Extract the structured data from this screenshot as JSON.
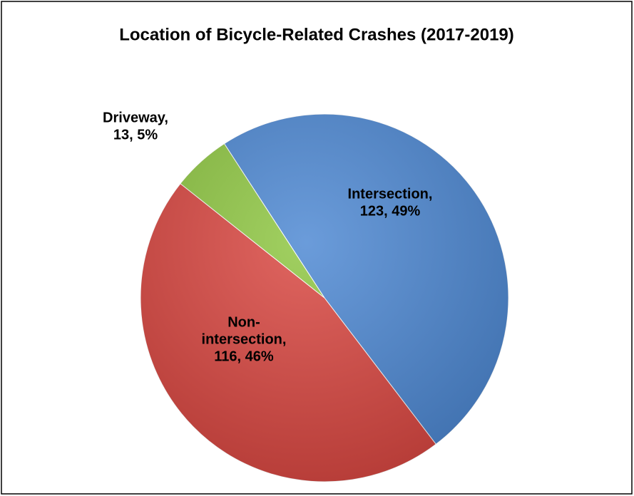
{
  "chart_data": {
    "type": "pie",
    "title": "Location of Bicycle-Related Crashes (2017-2019)",
    "values": [
      123,
      116,
      13
    ],
    "colors": [
      "#4a86d2",
      "#d9443e",
      "#8dc63f"
    ],
    "value_labels": [
      [
        "Intersection,",
        "123, 49%"
      ],
      [
        "Non-",
        "intersection,",
        "116, 46%"
      ],
      [
        "Driveway,",
        "13, 5%"
      ]
    ]
  }
}
